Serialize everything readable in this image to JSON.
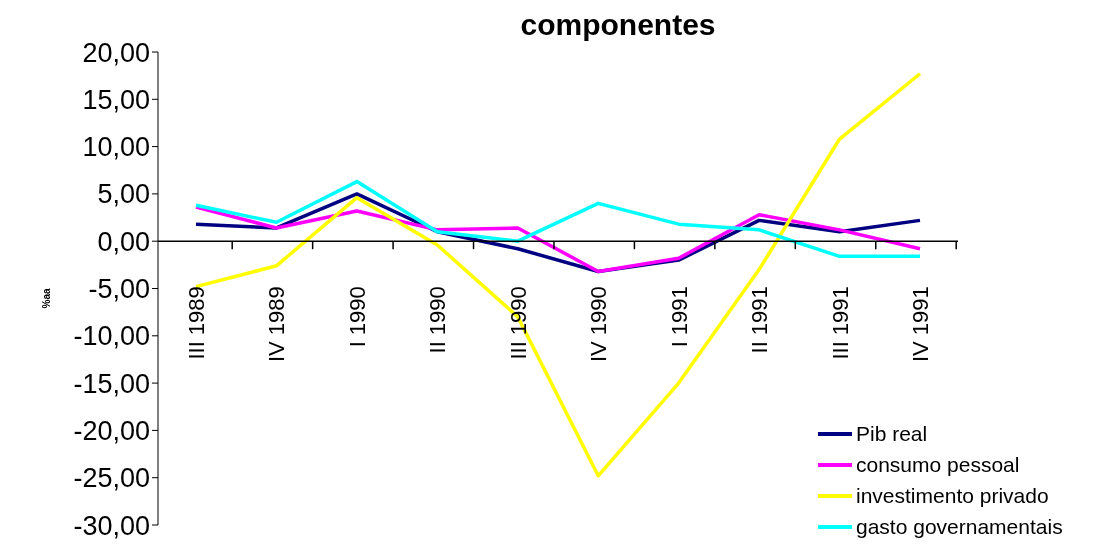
{
  "chart_data": {
    "type": "line",
    "title": "componentes",
    "ylabel": "%aa",
    "categories": [
      "III  1989",
      "IV  1989",
      "I  1990",
      "II  1990",
      "III  1990",
      "IV  1990",
      "I  1991",
      "II  1991",
      "III  1991",
      "IV  1991"
    ],
    "series": [
      {
        "name": "Pib real",
        "color": "#000080",
        "values": [
          1.8,
          1.4,
          5.0,
          1.0,
          -0.8,
          -3.2,
          -2.0,
          2.2,
          1.0,
          2.2
        ]
      },
      {
        "name": "consumo pessoal",
        "color": "#ff00ff",
        "values": [
          3.6,
          1.4,
          3.2,
          1.2,
          1.4,
          -3.2,
          -1.8,
          2.8,
          1.2,
          -0.8
        ]
      },
      {
        "name": "investimento privado",
        "color": "#ffff00",
        "values": [
          -4.8,
          -2.6,
          4.6,
          -0.4,
          -8.0,
          -24.8,
          -15.0,
          -3.0,
          10.8,
          17.7
        ]
      },
      {
        "name": "gasto governamentais",
        "color": "#00ffff",
        "values": [
          3.8,
          2.0,
          6.3,
          1.0,
          0.0,
          4.0,
          1.8,
          1.2,
          -1.6,
          -1.6
        ]
      }
    ],
    "ylim": [
      -30,
      20
    ],
    "yticks": [
      {
        "value": -30,
        "label": "-30,00"
      },
      {
        "value": -25,
        "label": "-25,00"
      },
      {
        "value": -20,
        "label": "-20,00"
      },
      {
        "value": -15,
        "label": "-15,00"
      },
      {
        "value": -10,
        "label": "-10,00"
      },
      {
        "value": -5,
        "label": "-5,00"
      },
      {
        "value": 0,
        "label": "0,00"
      },
      {
        "value": 5,
        "label": "5,00"
      },
      {
        "value": 10,
        "label": "10,00"
      },
      {
        "value": 15,
        "label": "15,00"
      },
      {
        "value": 20,
        "label": "20,00"
      }
    ],
    "grid": false,
    "legend": "bottom right",
    "marker": "none",
    "line_style": "solid"
  }
}
